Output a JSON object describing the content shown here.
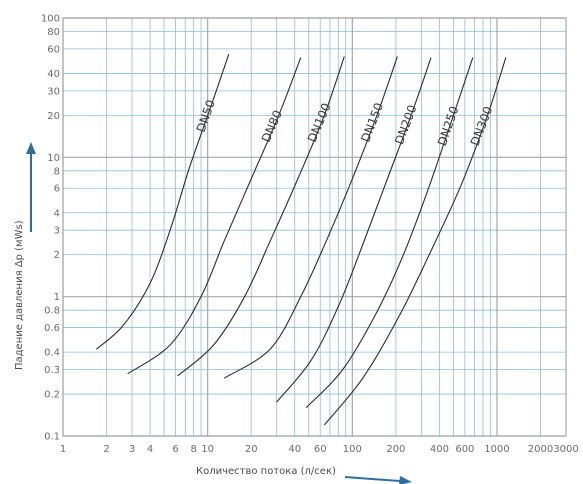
{
  "chart_data": {
    "type": "line",
    "xlabel": "Количество потока  (л/сек)",
    "ylabel": "Падение давления Δp (мWs)",
    "x_scale": "log",
    "y_scale": "log",
    "xlim": [
      1,
      3000
    ],
    "ylim": [
      0.1,
      100
    ],
    "grid": true,
    "x_ticks": [
      1,
      2,
      3,
      4,
      6,
      8,
      10,
      20,
      40,
      60,
      100,
      200,
      400,
      600,
      1000,
      2000,
      3000
    ],
    "x_tick_labels": [
      "1",
      "2",
      "3",
      "4",
      "6",
      "8",
      "10",
      "20",
      "40",
      "60",
      "100",
      "200",
      "400",
      "600",
      "1000",
      "2000",
      "3000"
    ],
    "y_ticks": [
      0.1,
      0.2,
      0.3,
      0.4,
      0.6,
      0.8,
      1,
      2,
      3,
      4,
      6,
      8,
      10,
      20,
      30,
      40,
      60,
      80,
      100
    ],
    "y_tick_labels": [
      "0.1",
      "0.2",
      "0.3",
      "0.4",
      "0.6",
      "0.8",
      "1",
      "2",
      "3",
      "4",
      "6",
      "8",
      "10",
      "20",
      "30",
      "40",
      "60",
      "80",
      "100"
    ],
    "series": [
      {
        "name": "DN50",
        "x": [
          1.7,
          2.6,
          4.0,
          5.5,
          7.5,
          10.5,
          14
        ],
        "y": [
          0.42,
          0.62,
          1.25,
          3.0,
          8.5,
          23,
          55
        ]
      },
      {
        "name": "DN80",
        "x": [
          2.8,
          5.5,
          9.0,
          13,
          20,
          31,
          44
        ],
        "y": [
          0.28,
          0.45,
          1.0,
          2.5,
          7.0,
          20,
          52
        ]
      },
      {
        "name": "DN100",
        "x": [
          6.2,
          11,
          18,
          27,
          42,
          64,
          88
        ],
        "y": [
          0.27,
          0.45,
          1.0,
          2.5,
          7.0,
          20,
          53
        ]
      },
      {
        "name": "DN150",
        "x": [
          13,
          27,
          44,
          66,
          100,
          148,
          205
        ],
        "y": [
          0.26,
          0.42,
          1.0,
          2.5,
          7.0,
          20,
          53
        ]
      },
      {
        "name": "DN200",
        "x": [
          30,
          52,
          80,
          115,
          170,
          255,
          350
        ],
        "y": [
          0.175,
          0.35,
          0.85,
          2.2,
          6.5,
          20,
          52
        ]
      },
      {
        "name": "DN250",
        "x": [
          48,
          86,
          150,
          230,
          340,
          500,
          680
        ],
        "y": [
          0.16,
          0.3,
          0.8,
          2.1,
          6.2,
          20,
          52
        ]
      },
      {
        "name": "DN300",
        "x": [
          64,
          118,
          210,
          340,
          560,
          860,
          1150
        ],
        "y": [
          0.12,
          0.26,
          0.72,
          2.0,
          6.2,
          20,
          52
        ]
      }
    ],
    "colors": {
      "grid": "#8fbdd7",
      "grid_major": "#a7a7a7",
      "curve": "#2b2b2b",
      "text": "#6b6b6b"
    }
  }
}
